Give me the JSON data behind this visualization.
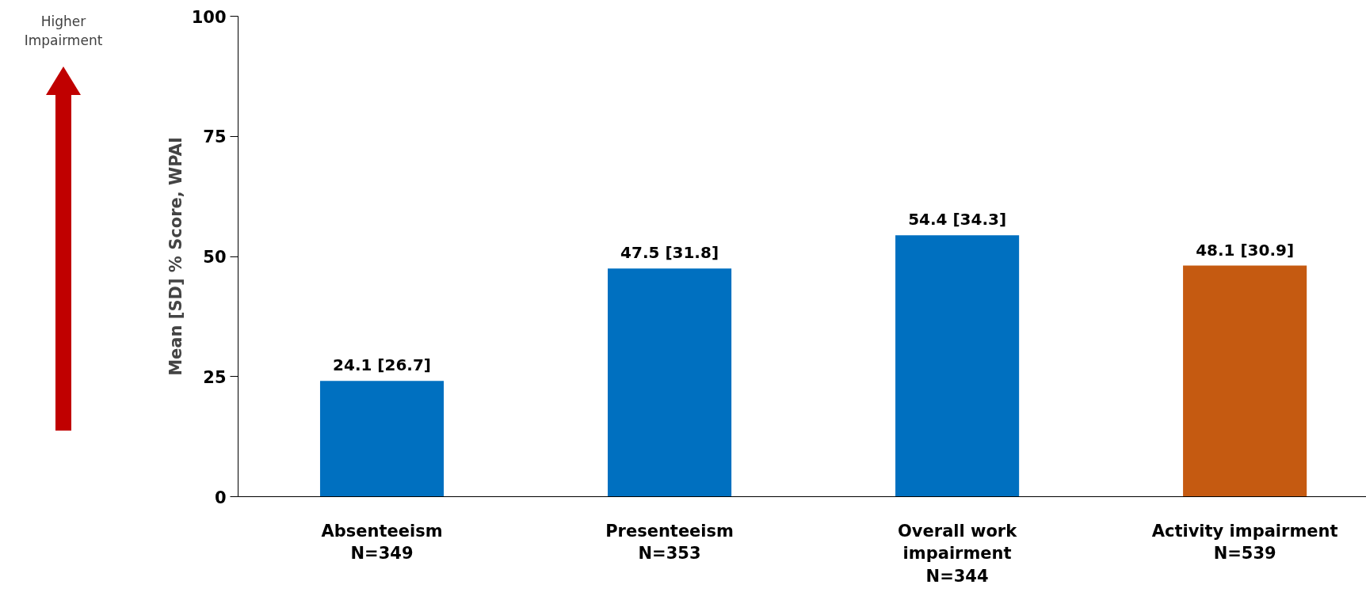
{
  "chart_data": {
    "type": "bar",
    "ylabel": "Mean [SD] % Score, WPAI",
    "categories": [
      "Absenteeism\nN=349",
      "Presenteeism\nN=353",
      "Overall work\nimpairment\nN=344",
      "Activity impairment\nN=539"
    ],
    "values": [
      24.1,
      47.5,
      54.4,
      48.1
    ],
    "value_labels": [
      "24.1 [26.7]",
      "47.5 [31.8]",
      "54.4 [34.3]",
      "48.1 [30.9]"
    ],
    "colors": [
      "#0070c0",
      "#0070c0",
      "#0070c0",
      "#c55a11"
    ],
    "ylim": [
      0,
      100
    ],
    "yticks": [
      0,
      25,
      50,
      75,
      100
    ],
    "grid": false,
    "annotations": [
      "Higher\nImpairment"
    ]
  }
}
